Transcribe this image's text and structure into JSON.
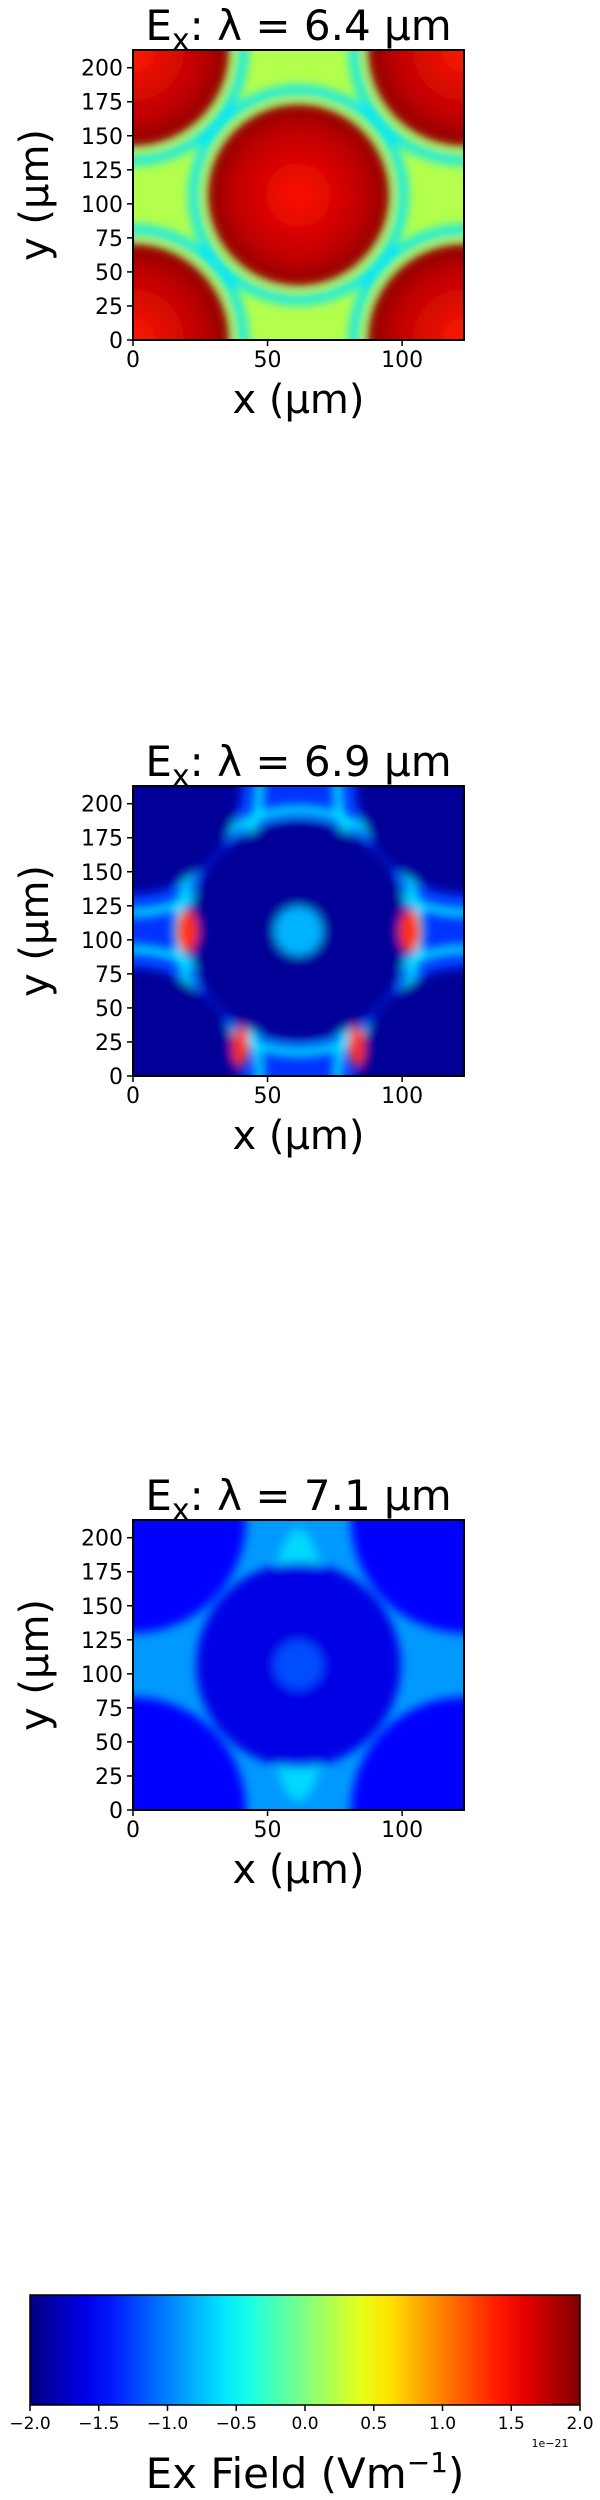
{
  "chart_data": [
    {
      "type": "heatmap",
      "title": {
        "prefix": "E",
        "subscript": "x",
        "rest": ":  λ = 6.4 μm"
      },
      "xlabel": "x (μm)",
      "ylabel": "y (μm)",
      "xlim": [
        0,
        123
      ],
      "ylim": [
        0,
        213
      ],
      "x_ticks": [
        0,
        50,
        100
      ],
      "y_ticks": [
        0,
        25,
        50,
        75,
        100,
        125,
        150,
        175,
        200
      ],
      "background_value": 0.2,
      "features": [
        {
          "shape": "disc",
          "cx": 61.5,
          "cy": 106.5,
          "r": 34,
          "value": 1.75,
          "center_value": 1.45
        },
        {
          "shape": "disc",
          "cx": 0,
          "cy": 0,
          "r": 36,
          "value": 1.75,
          "center_value": 1.4
        },
        {
          "shape": "disc",
          "cx": 123,
          "cy": 0,
          "r": 36,
          "value": 1.75,
          "center_value": 1.4
        },
        {
          "shape": "disc",
          "cx": 0,
          "cy": 213,
          "r": 36,
          "value": 1.75,
          "center_value": 1.4
        },
        {
          "shape": "disc",
          "cx": 123,
          "cy": 213,
          "r": 36,
          "value": 1.75,
          "center_value": 1.4
        },
        {
          "shape": "ring",
          "cx": 61.5,
          "cy": 106.5,
          "r": 39,
          "value": -0.6
        },
        {
          "shape": "ring",
          "cx": 0,
          "cy": 0,
          "r": 41,
          "value": -0.6
        },
        {
          "shape": "ring",
          "cx": 123,
          "cy": 0,
          "r": 41,
          "value": -0.6
        },
        {
          "shape": "ring",
          "cx": 0,
          "cy": 213,
          "r": 41,
          "value": -0.6
        },
        {
          "shape": "ring",
          "cx": 123,
          "cy": 213,
          "r": 41,
          "value": -0.6
        }
      ]
    },
    {
      "type": "heatmap",
      "title": {
        "prefix": "E",
        "subscript": "x",
        "rest": ":  λ = 6.9 μm"
      },
      "xlabel": "x (μm)",
      "ylabel": "y (μm)",
      "xlim": [
        0,
        123
      ],
      "ylim": [
        0,
        213
      ],
      "x_ticks": [
        0,
        50,
        100
      ],
      "y_ticks": [
        0,
        25,
        50,
        75,
        100,
        125,
        150,
        175,
        200
      ],
      "background_value": -1.3,
      "features": [
        {
          "shape": "ring",
          "cx": 61.5,
          "cy": 106.5,
          "r": 45,
          "value": -0.6
        },
        {
          "shape": "ring",
          "cx": 0,
          "cy": 0,
          "r": 47,
          "value": -0.6
        },
        {
          "shape": "ring",
          "cx": 123,
          "cy": 0,
          "r": 47,
          "value": -0.6
        },
        {
          "shape": "ring",
          "cx": 0,
          "cy": 213,
          "r": 47,
          "value": -0.6
        },
        {
          "shape": "ring",
          "cx": 123,
          "cy": 213,
          "r": 47,
          "value": -0.6
        },
        {
          "shape": "disc",
          "cx": 61.5,
          "cy": 106.5,
          "r": 41,
          "value": -1.9
        },
        {
          "shape": "disc",
          "cx": 0,
          "cy": 0,
          "r": 40,
          "value": -1.9
        },
        {
          "shape": "disc",
          "cx": 123,
          "cy": 0,
          "r": 40,
          "value": -1.9
        },
        {
          "shape": "disc",
          "cx": 0,
          "cy": 213,
          "r": 40,
          "value": -1.9
        },
        {
          "shape": "disc",
          "cx": 123,
          "cy": 213,
          "r": 40,
          "value": -1.9
        },
        {
          "shape": "ellipse",
          "cx": 61.5,
          "cy": 106.5,
          "rx": 9,
          "ry": 18,
          "value": -0.8
        },
        {
          "shape": "ellipse",
          "cx": 20,
          "cy": 106.5,
          "rx": 4,
          "ry": 16,
          "value": 1.3
        },
        {
          "shape": "ellipse",
          "cx": 103,
          "cy": 106.5,
          "rx": 4,
          "ry": 16,
          "value": 1.3
        },
        {
          "shape": "ellipse",
          "cx": 40,
          "cy": 22,
          "rx": 3,
          "ry": 15,
          "value": 1.3
        },
        {
          "shape": "ellipse",
          "cx": 83,
          "cy": 22,
          "rx": 3,
          "ry": 15,
          "value": 1.3
        }
      ]
    },
    {
      "type": "heatmap",
      "title": {
        "prefix": "E",
        "subscript": "x",
        "rest": ":  λ = 7.1 μm"
      },
      "xlabel": "x (μm)",
      "ylabel": "y (μm)",
      "xlim": [
        0,
        123
      ],
      "ylim": [
        0,
        213
      ],
      "x_ticks": [
        0,
        50,
        100
      ],
      "y_ticks": [
        0,
        25,
        50,
        75,
        100,
        125,
        150,
        175,
        200
      ],
      "background_value": -0.9,
      "features": [
        {
          "shape": "ellipse",
          "cx": 61.5,
          "cy": 106.5,
          "rx": 12,
          "ry": 100,
          "value": -0.65
        },
        {
          "shape": "disc",
          "cx": 61.5,
          "cy": 106.5,
          "r": 38,
          "value": -1.6
        },
        {
          "shape": "disc",
          "cx": 0,
          "cy": 0,
          "r": 42,
          "value": -1.5
        },
        {
          "shape": "disc",
          "cx": 123,
          "cy": 0,
          "r": 42,
          "value": -1.5
        },
        {
          "shape": "disc",
          "cx": 0,
          "cy": 213,
          "r": 42,
          "value": -1.5
        },
        {
          "shape": "disc",
          "cx": 123,
          "cy": 213,
          "r": 42,
          "value": -1.5
        },
        {
          "shape": "ellipse",
          "cx": 61.5,
          "cy": 106.5,
          "rx": 9,
          "ry": 18,
          "value": -1.2
        }
      ]
    }
  ],
  "colorbar": {
    "label_text": "Ex  Field (Vm",
    "label_sup": "−1",
    "label_close": ")",
    "min": -2.0,
    "max": 2.0,
    "ticks": [
      "−2.0",
      "−1.5",
      "−1.0",
      "−0.5",
      "0.0",
      "0.5",
      "1.0",
      "1.5",
      "2.0"
    ],
    "tick_values": [
      -2.0,
      -1.5,
      -1.0,
      -0.5,
      0.0,
      0.5,
      1.0,
      1.5,
      2.0
    ],
    "exponent_label": "1e−21",
    "colormap": "jet"
  }
}
